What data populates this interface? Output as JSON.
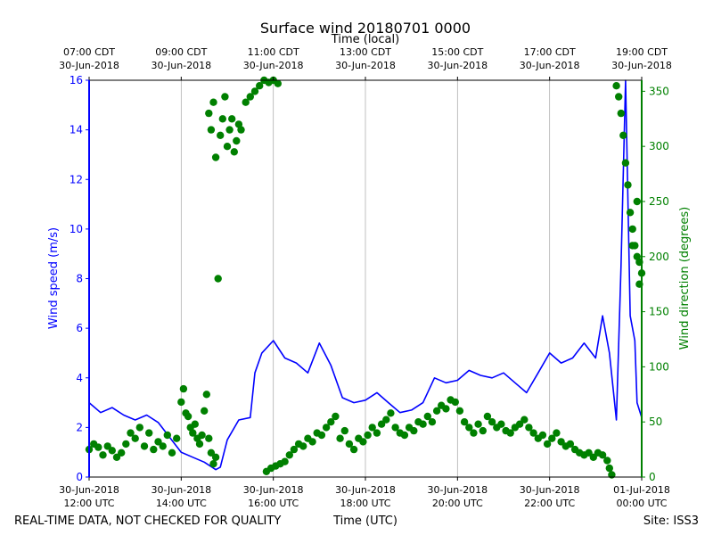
{
  "chart_data": {
    "type": "line+scatter",
    "title": "Surface wind 20180701 0000",
    "top_axis_label": "Time (local)",
    "xlabel": "Time (UTC)",
    "ylabel_left": "Wind speed (m/s)",
    "ylabel_right": "Wind direction (degrees)",
    "footer_left": "REAL-TIME DATA, NOT CHECKED FOR QUALITY",
    "footer_right": "Site: ISS3",
    "x_range_hours_utc": [
      12,
      24
    ],
    "ylim_left": [
      0,
      16
    ],
    "ylim_right": [
      0,
      360
    ],
    "left_ticks": [
      0,
      2,
      4,
      6,
      8,
      10,
      12,
      14,
      16
    ],
    "right_ticks": [
      0,
      50,
      100,
      150,
      200,
      250,
      300,
      350
    ],
    "bottom_ticks": [
      {
        "hour": 12,
        "line1": "30-Jun-2018",
        "line2": "12:00 UTC"
      },
      {
        "hour": 14,
        "line1": "30-Jun-2018",
        "line2": "14:00 UTC"
      },
      {
        "hour": 16,
        "line1": "30-Jun-2018",
        "line2": "16:00 UTC"
      },
      {
        "hour": 18,
        "line1": "30-Jun-2018",
        "line2": "18:00 UTC"
      },
      {
        "hour": 20,
        "line1": "30-Jun-2018",
        "line2": "20:00 UTC"
      },
      {
        "hour": 22,
        "line1": "30-Jun-2018",
        "line2": "22:00 UTC"
      },
      {
        "hour": 24,
        "line1": "01-Jul-2018",
        "line2": "00:00 UTC"
      }
    ],
    "top_ticks": [
      {
        "hour": 12,
        "line1": "07:00 CDT",
        "line2": "30-Jun-2018"
      },
      {
        "hour": 14,
        "line1": "09:00 CDT",
        "line2": "30-Jun-2018"
      },
      {
        "hour": 16,
        "line1": "11:00 CDT",
        "line2": "30-Jun-2018"
      },
      {
        "hour": 18,
        "line1": "13:00 CDT",
        "line2": "30-Jun-2018"
      },
      {
        "hour": 20,
        "line1": "15:00 CDT",
        "line2": "30-Jun-2018"
      },
      {
        "hour": 22,
        "line1": "17:00 CDT",
        "line2": "30-Jun-2018"
      },
      {
        "hour": 24,
        "line1": "19:00 CDT",
        "line2": "30-Jun-2018"
      }
    ],
    "series": [
      {
        "name": "Wind speed",
        "axis": "left",
        "style": "line",
        "color": "#0000ff",
        "points": [
          [
            12.0,
            3.0
          ],
          [
            12.25,
            2.6
          ],
          [
            12.5,
            2.8
          ],
          [
            12.75,
            2.5
          ],
          [
            13.0,
            2.3
          ],
          [
            13.25,
            2.5
          ],
          [
            13.5,
            2.2
          ],
          [
            13.75,
            1.6
          ],
          [
            14.0,
            1.0
          ],
          [
            14.25,
            0.8
          ],
          [
            14.5,
            0.6
          ],
          [
            14.75,
            0.3
          ],
          [
            14.85,
            0.4
          ],
          [
            15.0,
            1.5
          ],
          [
            15.25,
            2.3
          ],
          [
            15.5,
            2.4
          ],
          [
            15.6,
            4.2
          ],
          [
            15.75,
            5.0
          ],
          [
            16.0,
            5.5
          ],
          [
            16.25,
            4.8
          ],
          [
            16.5,
            4.6
          ],
          [
            16.75,
            4.2
          ],
          [
            17.0,
            5.4
          ],
          [
            17.25,
            4.5
          ],
          [
            17.5,
            3.2
          ],
          [
            17.75,
            3.0
          ],
          [
            18.0,
            3.1
          ],
          [
            18.25,
            3.4
          ],
          [
            18.5,
            3.0
          ],
          [
            18.75,
            2.6
          ],
          [
            19.0,
            2.7
          ],
          [
            19.25,
            3.0
          ],
          [
            19.5,
            4.0
          ],
          [
            19.75,
            3.8
          ],
          [
            20.0,
            3.9
          ],
          [
            20.25,
            4.3
          ],
          [
            20.5,
            4.1
          ],
          [
            20.75,
            4.0
          ],
          [
            21.0,
            4.2
          ],
          [
            21.25,
            3.8
          ],
          [
            21.5,
            3.4
          ],
          [
            21.75,
            4.2
          ],
          [
            22.0,
            5.0
          ],
          [
            22.25,
            4.6
          ],
          [
            22.5,
            4.8
          ],
          [
            22.75,
            5.4
          ],
          [
            23.0,
            4.8
          ],
          [
            23.15,
            6.5
          ],
          [
            23.3,
            5.0
          ],
          [
            23.45,
            2.3
          ],
          [
            23.55,
            8.5
          ],
          [
            23.65,
            16.0
          ],
          [
            23.75,
            6.5
          ],
          [
            23.85,
            5.5
          ],
          [
            23.9,
            3.0
          ],
          [
            24.0,
            2.4
          ]
        ]
      },
      {
        "name": "Wind direction",
        "axis": "right",
        "style": "scatter",
        "color": "#008000",
        "points": [
          [
            12.0,
            25
          ],
          [
            12.1,
            30
          ],
          [
            12.2,
            27
          ],
          [
            12.3,
            20
          ],
          [
            12.4,
            28
          ],
          [
            12.5,
            24
          ],
          [
            12.6,
            18
          ],
          [
            12.7,
            22
          ],
          [
            12.8,
            30
          ],
          [
            12.9,
            40
          ],
          [
            13.0,
            35
          ],
          [
            13.1,
            45
          ],
          [
            13.2,
            28
          ],
          [
            13.3,
            40
          ],
          [
            13.4,
            25
          ],
          [
            13.5,
            32
          ],
          [
            13.6,
            28
          ],
          [
            13.7,
            38
          ],
          [
            13.8,
            22
          ],
          [
            13.9,
            35
          ],
          [
            14.0,
            68
          ],
          [
            14.05,
            80
          ],
          [
            14.1,
            58
          ],
          [
            14.15,
            55
          ],
          [
            14.2,
            45
          ],
          [
            14.25,
            40
          ],
          [
            14.3,
            48
          ],
          [
            14.35,
            35
          ],
          [
            14.4,
            30
          ],
          [
            14.45,
            38
          ],
          [
            14.5,
            60
          ],
          [
            14.55,
            75
          ],
          [
            14.6,
            35
          ],
          [
            14.65,
            22
          ],
          [
            14.7,
            12
          ],
          [
            14.75,
            18
          ],
          [
            14.8,
            180
          ],
          [
            14.6,
            330
          ],
          [
            14.65,
            315
          ],
          [
            14.7,
            340
          ],
          [
            14.75,
            290
          ],
          [
            14.85,
            310
          ],
          [
            14.9,
            325
          ],
          [
            14.95,
            345
          ],
          [
            15.0,
            300
          ],
          [
            15.05,
            315
          ],
          [
            15.1,
            325
          ],
          [
            15.15,
            295
          ],
          [
            15.2,
            305
          ],
          [
            15.25,
            320
          ],
          [
            15.3,
            315
          ],
          [
            15.4,
            340
          ],
          [
            15.5,
            345
          ],
          [
            15.6,
            350
          ],
          [
            15.7,
            355
          ],
          [
            15.8,
            360
          ],
          [
            15.9,
            358
          ],
          [
            16.0,
            360
          ],
          [
            16.1,
            357
          ],
          [
            15.85,
            5
          ],
          [
            15.95,
            8
          ],
          [
            16.05,
            10
          ],
          [
            16.15,
            12
          ],
          [
            16.25,
            14
          ],
          [
            16.35,
            20
          ],
          [
            16.45,
            25
          ],
          [
            16.55,
            30
          ],
          [
            16.65,
            28
          ],
          [
            16.75,
            35
          ],
          [
            16.85,
            32
          ],
          [
            16.95,
            40
          ],
          [
            17.05,
            38
          ],
          [
            17.15,
            45
          ],
          [
            17.25,
            50
          ],
          [
            17.35,
            55
          ],
          [
            17.45,
            35
          ],
          [
            17.55,
            42
          ],
          [
            17.65,
            30
          ],
          [
            17.75,
            25
          ],
          [
            17.85,
            35
          ],
          [
            17.95,
            32
          ],
          [
            18.05,
            38
          ],
          [
            18.15,
            45
          ],
          [
            18.25,
            40
          ],
          [
            18.35,
            48
          ],
          [
            18.45,
            52
          ],
          [
            18.55,
            58
          ],
          [
            18.65,
            45
          ],
          [
            18.75,
            40
          ],
          [
            18.85,
            38
          ],
          [
            18.95,
            45
          ],
          [
            19.05,
            42
          ],
          [
            19.15,
            50
          ],
          [
            19.25,
            48
          ],
          [
            19.35,
            55
          ],
          [
            19.45,
            50
          ],
          [
            19.55,
            60
          ],
          [
            19.65,
            65
          ],
          [
            19.75,
            62
          ],
          [
            19.85,
            70
          ],
          [
            19.95,
            68
          ],
          [
            20.05,
            60
          ],
          [
            20.15,
            50
          ],
          [
            20.25,
            45
          ],
          [
            20.35,
            40
          ],
          [
            20.45,
            48
          ],
          [
            20.55,
            42
          ],
          [
            20.65,
            55
          ],
          [
            20.75,
            50
          ],
          [
            20.85,
            45
          ],
          [
            20.95,
            48
          ],
          [
            21.05,
            42
          ],
          [
            21.15,
            40
          ],
          [
            21.25,
            45
          ],
          [
            21.35,
            48
          ],
          [
            21.45,
            52
          ],
          [
            21.55,
            45
          ],
          [
            21.65,
            40
          ],
          [
            21.75,
            35
          ],
          [
            21.85,
            38
          ],
          [
            21.95,
            30
          ],
          [
            22.05,
            35
          ],
          [
            22.15,
            40
          ],
          [
            22.25,
            32
          ],
          [
            22.35,
            28
          ],
          [
            22.45,
            30
          ],
          [
            22.55,
            25
          ],
          [
            22.65,
            22
          ],
          [
            22.75,
            20
          ],
          [
            22.85,
            22
          ],
          [
            22.95,
            18
          ],
          [
            23.05,
            22
          ],
          [
            23.15,
            20
          ],
          [
            23.25,
            15
          ],
          [
            23.3,
            8
          ],
          [
            23.35,
            2
          ],
          [
            23.45,
            355
          ],
          [
            23.5,
            345
          ],
          [
            23.55,
            330
          ],
          [
            23.6,
            310
          ],
          [
            23.65,
            285
          ],
          [
            23.7,
            265
          ],
          [
            23.75,
            240
          ],
          [
            23.8,
            225
          ],
          [
            23.85,
            210
          ],
          [
            23.9,
            200
          ],
          [
            23.95,
            195
          ],
          [
            24.0,
            185
          ],
          [
            23.9,
            250
          ],
          [
            23.8,
            210
          ],
          [
            23.95,
            175
          ]
        ]
      }
    ]
  }
}
